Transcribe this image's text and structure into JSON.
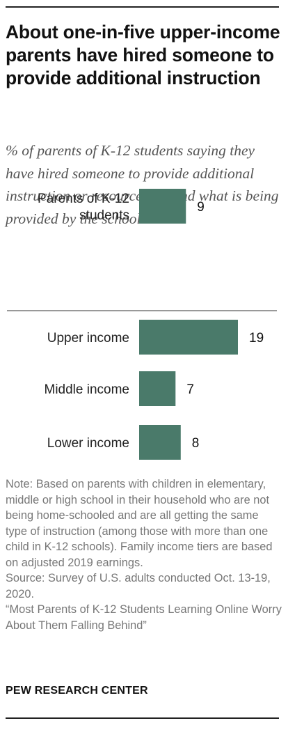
{
  "title": "About one-in-five upper-income parents have hired someone to provide additional instruction",
  "subtitle": "% of parents of K-12 students saying they have hired someone to provide additional instruction or resources beyond what is being provided by the school",
  "note": "Note: Based on parents with children in elementary, middle or high school in their household who are not being home-schooled and are all getting the same type of instruction (among those with more than one child in K-12 schools). Family income tiers are based on adjusted 2019 earnings.",
  "source": "Source: Survey of U.S. adults conducted Oct. 13-19, 2020.",
  "report": "“Most Parents of K-12 Students Learning Online Worry About Them Falling Behind”",
  "brand": "PEW RESEARCH CENTER",
  "colors": {
    "bar": "#4a7a6a",
    "separator": "#999999"
  },
  "chart_data": {
    "type": "bar",
    "orientation": "horizontal",
    "categories": [
      "Parents of K-12 students",
      "Upper income",
      "Middle income",
      "Lower income"
    ],
    "category_lines": [
      [
        "Parents of K-12",
        "students"
      ],
      [
        "Upper income"
      ],
      [
        "Middle income"
      ],
      [
        "Lower income"
      ]
    ],
    "values": [
      9,
      19,
      7,
      8
    ],
    "value_labels": [
      "9",
      "19",
      "7",
      "8"
    ],
    "title": "About one-in-five upper-income parents have hired someone to provide additional instruction",
    "xlabel": "",
    "ylabel": "",
    "xlim": [
      0,
      19
    ],
    "grid": false
  }
}
